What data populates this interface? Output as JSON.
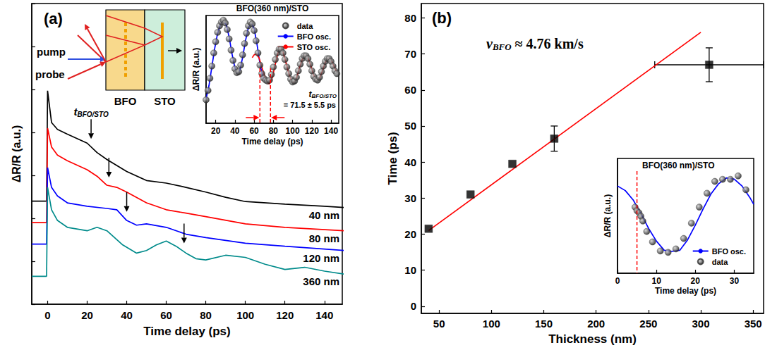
{
  "chart_data": [
    {
      "type": "line",
      "panel": "(a)",
      "xlabel": "Time delay (ps)",
      "ylabel": "ΔR/R (a.u.)",
      "xlim": [
        -8,
        149
      ],
      "xticks": [
        0,
        20,
        40,
        60,
        80,
        100,
        120,
        140
      ],
      "ylim": [
        0,
        7
      ],
      "yticks": [
        0,
        1,
        2,
        3,
        4,
        5,
        6,
        7
      ],
      "tick_labels": "x",
      "series": [
        {
          "name": "40 nm",
          "color": "#000000",
          "x": [
            -8,
            -0.5,
            0,
            2,
            5,
            10,
            20,
            25,
            30,
            40,
            50,
            60,
            70,
            80,
            90,
            100,
            120,
            140,
            150
          ],
          "values": [
            2.4,
            2.4,
            4.97,
            4.23,
            4.07,
            3.96,
            3.75,
            3.53,
            3.37,
            3.09,
            2.88,
            2.82,
            2.72,
            2.61,
            2.49,
            2.39,
            2.33,
            2.28,
            2.25
          ]
        },
        {
          "name": "80 nm",
          "color": "#ff0000",
          "x": [
            -8,
            -0.5,
            0,
            2,
            5,
            10,
            20,
            25,
            30,
            35,
            40,
            50,
            60,
            70,
            80,
            100,
            120,
            150
          ],
          "values": [
            1.9,
            1.9,
            4.1,
            3.66,
            3.47,
            3.34,
            3.13,
            2.98,
            2.77,
            2.72,
            2.61,
            2.36,
            2.2,
            2.12,
            2.04,
            1.87,
            1.79,
            1.71
          ]
        },
        {
          "name": "120 nm",
          "color": "#0000ff",
          "x": [
            -8,
            -0.5,
            0,
            2,
            5,
            10,
            20,
            30,
            35,
            40,
            45,
            50,
            60,
            70,
            80,
            100,
            120,
            150
          ],
          "values": [
            1.4,
            1.4,
            3.18,
            2.72,
            2.52,
            2.36,
            2.28,
            2.23,
            2.2,
            1.95,
            1.84,
            1.87,
            1.79,
            1.63,
            1.55,
            1.42,
            1.35,
            1.25
          ]
        },
        {
          "name": "360 nm",
          "color": "#008b8b",
          "x": [
            -8,
            -0.5,
            0,
            2,
            5,
            10,
            20,
            25,
            30,
            38,
            45,
            50,
            55,
            60,
            65,
            70,
            75,
            80,
            90,
            100,
            110,
            120,
            130,
            140,
            150
          ],
          "values": [
            0.65,
            0.65,
            2.72,
            2.2,
            1.95,
            1.79,
            1.71,
            1.79,
            1.71,
            1.38,
            1.19,
            1.25,
            1.38,
            1.47,
            1.35,
            1.19,
            1.06,
            1.03,
            1.14,
            1.09,
            0.93,
            0.81,
            0.86,
            0.77,
            0.7
          ]
        }
      ],
      "arrows": {
        "text": "t",
        "sub": "BFO/STO",
        "x": [
          22,
          31,
          40,
          69
        ],
        "y": [
          3.85,
          2.95,
          2.15,
          1.42
        ]
      },
      "schematic": {
        "pump": "pump",
        "probe": "probe",
        "layers": [
          "BFO",
          "STO"
        ]
      }
    },
    {
      "type": "line",
      "title": "BFO(360 nm)/STO",
      "xlabel": "Time delay (ps)",
      "ylabel": "ΔR/R (a.u.)",
      "xlim": [
        10,
        148
      ],
      "xticks": [
        20,
        40,
        60,
        80,
        100,
        120,
        140
      ],
      "ylim": [
        -1,
        10.5
      ],
      "tick_labels": "x",
      "legend": "upper right",
      "series": [
        {
          "name": "data",
          "type": "scatter",
          "marker": "circle",
          "color": "#000000",
          "x": [
            10,
            12,
            14,
            16,
            18,
            20,
            22,
            24,
            26,
            28,
            30,
            32,
            34,
            36,
            38,
            40,
            42,
            44,
            46,
            48,
            50,
            52,
            54,
            56,
            58,
            60,
            62,
            64,
            66,
            68,
            70,
            72,
            74,
            76,
            78,
            80,
            82,
            84,
            86,
            88,
            90,
            92,
            94,
            96,
            98,
            100,
            102,
            104,
            106,
            108,
            110,
            112,
            114,
            116,
            118,
            120,
            122,
            124,
            126,
            128,
            130,
            132,
            134,
            136,
            138,
            140,
            142,
            144,
            146
          ],
          "values": [
            1.5,
            2.5,
            3.8,
            5.1,
            6.5,
            7.7,
            8.7,
            9.4,
            9.8,
            10.0,
            9.7,
            9.0,
            8.0,
            6.8,
            5.7,
            4.8,
            4.4,
            4.5,
            5.2,
            6.3,
            7.5,
            8.6,
            9.4,
            9.8,
            9.6,
            8.9,
            7.8,
            6.5,
            5.2,
            4.3,
            3.8,
            3.6,
            3.5,
            3.6,
            4.2,
            5.0,
            5.8,
            6.5,
            6.9,
            6.9,
            6.5,
            5.8,
            5.0,
            4.3,
            3.7,
            3.4,
            3.5,
            3.9,
            4.6,
            5.3,
            5.9,
            6.2,
            6.2,
            5.9,
            5.3,
            4.6,
            4.0,
            3.7,
            3.6,
            3.9,
            4.5,
            5.1,
            5.6,
            5.9,
            5.9,
            5.6,
            5.1,
            4.6,
            4.3
          ]
        },
        {
          "name": "BFO osc.",
          "type": "line",
          "color": "#0000ff",
          "x": [
            10,
            13,
            16,
            19,
            22,
            25,
            28,
            31,
            34,
            37,
            40,
            42,
            45,
            48,
            51,
            54,
            57,
            60,
            63,
            66,
            69,
            72
          ],
          "values": [
            1.6,
            3.0,
            5.0,
            7.0,
            8.6,
            9.6,
            9.9,
            9.5,
            8.2,
            6.4,
            4.9,
            4.3,
            4.6,
            6.0,
            7.8,
            9.2,
            9.7,
            9.1,
            7.4,
            5.4,
            3.9,
            3.5
          ]
        },
        {
          "name": "STO osc.",
          "type": "line",
          "color": "#ff0000",
          "x": [
            58,
            60,
            62,
            65,
            68,
            71,
            74,
            76,
            79,
            82,
            85,
            87,
            90,
            93,
            96,
            99,
            101,
            104,
            107,
            110,
            113,
            116,
            119,
            122,
            125,
            128,
            131,
            134,
            137,
            140,
            143,
            146
          ],
          "values": [
            6.0,
            6.3,
            6.4,
            6.0,
            5.0,
            4.0,
            3.3,
            3.2,
            3.9,
            5.3,
            6.6,
            7.0,
            6.6,
            5.5,
            4.3,
            3.5,
            3.3,
            3.8,
            4.9,
            5.8,
            6.3,
            6.0,
            5.1,
            4.1,
            3.6,
            3.8,
            4.6,
            5.5,
            6.0,
            5.8,
            5.1,
            4.4
          ]
        }
      ],
      "vlines": {
        "x": [
          66,
          77
        ],
        "color": "#ff0000",
        "line_style": "dashed"
      },
      "annotation": {
        "text": "t",
        "sub": "BFO/STO",
        "rest": "= 71.5 ± 5.5 ps"
      }
    },
    {
      "type": "scatter",
      "panel": "(b)",
      "xlabel": "Thickness (nm)",
      "ylabel": "Time (ps)",
      "xlim": [
        33,
        360
      ],
      "xticks": [
        50,
        100,
        150,
        200,
        250,
        300,
        350
      ],
      "ylim": [
        -2,
        84
      ],
      "yticks": [
        0,
        10,
        20,
        30,
        40,
        50,
        60,
        70,
        80
      ],
      "series": [
        {
          "type": "scatter",
          "marker": "square",
          "color": "#000000",
          "x": [
            40,
            80,
            120,
            160,
            308
          ],
          "values": [
            21.5,
            31,
            39.5,
            46.5,
            67
          ],
          "xerr": [
            0,
            0,
            0,
            0,
            52
          ],
          "yerr": [
            0,
            0,
            0,
            3.5,
            4.7
          ]
        },
        {
          "type": "line",
          "color": "#ff0000",
          "x": [
            40,
            300
          ],
          "values": [
            21,
            76
          ]
        }
      ],
      "annotation": {
        "text": "v",
        "sub": "BFO",
        "rest": "≈ 4.76 km/s"
      }
    },
    {
      "type": "line",
      "title": "BFO(360 nm)/STO",
      "xlabel": "Time delay (ps)",
      "ylabel": "ΔR/R (a.u.)",
      "xlim": [
        0,
        35
      ],
      "xticks": [
        0,
        10,
        20,
        30
      ],
      "ylim": [
        0,
        10
      ],
      "tick_labels": "x",
      "legend": "lower right",
      "series": [
        {
          "name": "BFO osc.",
          "type": "line",
          "color": "#0000ff",
          "x": [
            0,
            2,
            4,
            6,
            8,
            10,
            12,
            14,
            16,
            18,
            20,
            22,
            24,
            26,
            28,
            30,
            32,
            34,
            35
          ],
          "values": [
            7.6,
            7.2,
            6.4,
            5.2,
            3.9,
            2.8,
            2.0,
            1.9,
            2.0,
            2.9,
            4.2,
            5.6,
            6.9,
            7.8,
            8.3,
            8.2,
            7.6,
            6.6,
            6.0
          ]
        },
        {
          "name": "data",
          "type": "scatter",
          "marker": "circle",
          "color": "#000000",
          "x": [
            4.5,
            5,
            5.5,
            6,
            6.5,
            7.5,
            9,
            11,
            13,
            15,
            17,
            19,
            21,
            23,
            25,
            27,
            29,
            31,
            33
          ],
          "values": [
            5.76,
            5.45,
            5.27,
            4.97,
            4.55,
            3.64,
            2.73,
            1.94,
            1.82,
            2.12,
            3.03,
            4.36,
            5.76,
            6.97,
            8.0,
            8.18,
            8.18,
            8.48,
            7.27
          ]
        }
      ],
      "vlines": {
        "x": [
          5
        ],
        "color": "#ff0000",
        "line_style": "dashed"
      }
    }
  ]
}
